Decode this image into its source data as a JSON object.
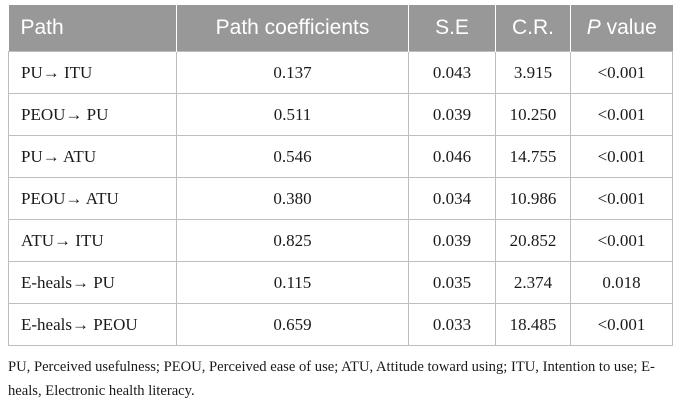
{
  "table": {
    "headers": {
      "path": "Path",
      "coef": "Path coefficients",
      "se": "S.E",
      "cr": "C.R.",
      "p_italic": "P",
      "p_rest": " value"
    },
    "rows": [
      {
        "path": "PU→ ITU",
        "coef": "0.137",
        "se": "0.043",
        "cr": "3.915",
        "p": "<0.001"
      },
      {
        "path": "PEOU→ PU",
        "coef": "0.511",
        "se": "0.039",
        "cr": "10.250",
        "p": "<0.001"
      },
      {
        "path": "PU→ ATU",
        "coef": "0.546",
        "se": "0.046",
        "cr": "14.755",
        "p": "<0.001"
      },
      {
        "path": "PEOU→ ATU",
        "coef": "0.380",
        "se": "0.034",
        "cr": "10.986",
        "p": "<0.001"
      },
      {
        "path": "ATU→ ITU",
        "coef": "0.825",
        "se": "0.039",
        "cr": "20.852",
        "p": "<0.001"
      },
      {
        "path": "E-heals→ PU",
        "coef": "0.115",
        "se": "0.035",
        "cr": "2.374",
        "p": "0.018"
      },
      {
        "path": "E-heals→ PEOU",
        "coef": "0.659",
        "se": "0.033",
        "cr": "18.485",
        "p": "<0.001"
      }
    ]
  },
  "footnote": "PU, Perceived usefulness; PEOU, Perceived ease of use; ATU, Attitude toward using; ITU, Intention to use; E-heals, Electronic health literacy."
}
